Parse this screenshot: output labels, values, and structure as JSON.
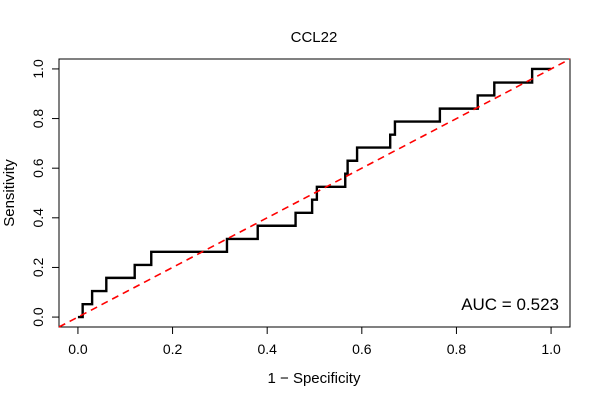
{
  "chart_data": {
    "type": "line",
    "title": "CCL22",
    "xlabel": "1 − Specificity",
    "ylabel": "Sensitivity",
    "xlim": [
      -0.04,
      1.04
    ],
    "ylim": [
      -0.04,
      1.04
    ],
    "x_ticks": [
      "0.0",
      "0.2",
      "0.4",
      "0.6",
      "0.8",
      "1.0"
    ],
    "y_ticks": [
      "0.0",
      "0.2",
      "0.4",
      "0.6",
      "0.8",
      "1.0"
    ],
    "annotation": "AUC = 0.523",
    "grid": false,
    "series": [
      {
        "color": "#000000",
        "style": "step",
        "x": [
          0.0,
          0.01,
          0.01,
          0.03,
          0.03,
          0.06,
          0.06,
          0.12,
          0.12,
          0.155,
          0.155,
          0.315,
          0.315,
          0.38,
          0.38,
          0.46,
          0.46,
          0.495,
          0.495,
          0.505,
          0.505,
          0.565,
          0.565,
          0.57,
          0.57,
          0.59,
          0.59,
          0.66,
          0.66,
          0.67,
          0.67,
          0.765,
          0.765,
          0.845,
          0.845,
          0.88,
          0.88,
          0.96,
          0.96,
          1.0
        ],
        "y": [
          0.0,
          0.0,
          0.052,
          0.052,
          0.105,
          0.105,
          0.158,
          0.158,
          0.21,
          0.21,
          0.263,
          0.263,
          0.315,
          0.315,
          0.368,
          0.368,
          0.42,
          0.42,
          0.473,
          0.473,
          0.525,
          0.525,
          0.578,
          0.578,
          0.63,
          0.63,
          0.683,
          0.683,
          0.735,
          0.735,
          0.788,
          0.788,
          0.84,
          0.84,
          0.893,
          0.893,
          0.945,
          0.945,
          1.0,
          1.0
        ]
      },
      {
        "color": "#ff0000",
        "style": "dashed",
        "x": [
          -0.04,
          1.04
        ],
        "y": [
          -0.04,
          1.04
        ]
      }
    ]
  }
}
